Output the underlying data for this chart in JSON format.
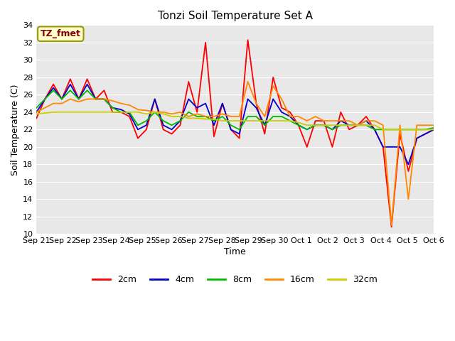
{
  "title": "Tonzi Soil Temperature Set A",
  "xlabel": "Time",
  "ylabel": "Soil Temperature (C)",
  "ylim": [
    10,
    34
  ],
  "yticks": [
    10,
    12,
    14,
    16,
    18,
    20,
    22,
    24,
    26,
    28,
    30,
    32,
    34
  ],
  "annotation": "TZ_fmet",
  "annotation_color": "#880000",
  "annotation_bg": "#ffffcc",
  "annotation_edge": "#999900",
  "line_colors": {
    "2cm": "#ff0000",
    "4cm": "#0000cc",
    "8cm": "#00bb00",
    "16cm": "#ff8800",
    "32cm": "#cccc00"
  },
  "xtick_labels": [
    "Sep 21",
    "Sep 22",
    "Sep 23",
    "Sep 24",
    "Sep 25",
    "Sep 26",
    "Sep 27",
    "Sep 28",
    "Sep 29",
    "Sep 30",
    "Oct 1",
    "Oct 2",
    "Oct 3",
    "Oct 4",
    "Oct 5",
    "Oct 6"
  ],
  "fig_bg": "#ffffff",
  "plot_bg": "#e8e8e8",
  "grid_color": "#ffffff",
  "2cm": [
    23.3,
    25.5,
    27.2,
    25.5,
    27.8,
    25.5,
    27.8,
    25.5,
    26.5,
    24.0,
    24.0,
    23.5,
    21.0,
    22.0,
    25.5,
    22.0,
    21.5,
    22.5,
    27.5,
    24.0,
    32.0,
    21.2,
    25.0,
    22.0,
    21.0,
    32.3,
    25.0,
    21.5,
    28.0,
    24.5,
    24.0,
    22.5,
    20.0,
    23.0,
    23.0,
    20.0,
    24.0,
    22.0,
    22.5,
    23.5,
    22.0,
    20.0,
    10.8,
    21.5,
    17.2,
    21.0,
    21.5,
    22.0
  ],
  "4cm": [
    24.0,
    25.5,
    26.8,
    25.5,
    27.2,
    25.5,
    27.2,
    25.5,
    25.5,
    24.5,
    24.3,
    23.8,
    22.0,
    22.5,
    25.5,
    22.5,
    22.0,
    23.0,
    25.5,
    24.5,
    25.0,
    22.5,
    25.0,
    22.0,
    21.5,
    25.5,
    24.5,
    22.5,
    25.5,
    24.0,
    23.5,
    22.5,
    22.0,
    22.5,
    22.5,
    22.0,
    23.0,
    22.5,
    22.5,
    23.0,
    22.0,
    20.0,
    20.0,
    20.0,
    18.0,
    21.0,
    21.5,
    22.0
  ],
  "8cm": [
    24.5,
    25.5,
    26.5,
    25.5,
    26.5,
    25.5,
    26.5,
    25.5,
    25.5,
    24.5,
    24.0,
    24.0,
    22.5,
    23.0,
    24.0,
    23.0,
    22.5,
    23.0,
    24.0,
    23.5,
    23.5,
    23.0,
    23.5,
    22.5,
    22.0,
    23.5,
    23.5,
    22.5,
    23.5,
    23.5,
    23.0,
    22.5,
    22.0,
    22.5,
    22.5,
    22.0,
    22.5,
    22.5,
    22.5,
    22.5,
    22.0,
    22.0,
    22.0,
    22.0,
    22.0,
    22.0,
    22.0,
    22.2
  ],
  "16cm": [
    24.0,
    24.5,
    25.0,
    25.0,
    25.5,
    25.2,
    25.5,
    25.5,
    25.5,
    25.3,
    25.0,
    24.8,
    24.3,
    24.2,
    24.0,
    24.0,
    23.8,
    24.0,
    23.5,
    23.8,
    23.5,
    23.5,
    23.8,
    23.5,
    23.5,
    27.5,
    25.0,
    23.5,
    27.0,
    25.5,
    23.5,
    23.5,
    23.0,
    23.5,
    23.0,
    23.0,
    23.0,
    23.0,
    22.5,
    23.0,
    23.0,
    22.5,
    11.0,
    22.5,
    14.0,
    22.5,
    22.5,
    22.5
  ],
  "32cm": [
    23.8,
    23.9,
    24.0,
    24.0,
    24.0,
    24.0,
    24.0,
    24.0,
    24.0,
    24.0,
    24.0,
    24.0,
    24.0,
    23.8,
    24.0,
    23.8,
    23.5,
    23.5,
    23.3,
    23.3,
    23.2,
    23.2,
    23.0,
    23.0,
    23.0,
    23.0,
    23.0,
    23.0,
    23.0,
    23.0,
    23.0,
    22.8,
    22.5,
    22.5,
    22.5,
    22.5,
    22.5,
    22.5,
    22.5,
    22.5,
    22.5,
    22.0,
    22.0,
    22.0,
    22.0,
    22.0,
    22.0,
    22.0
  ]
}
